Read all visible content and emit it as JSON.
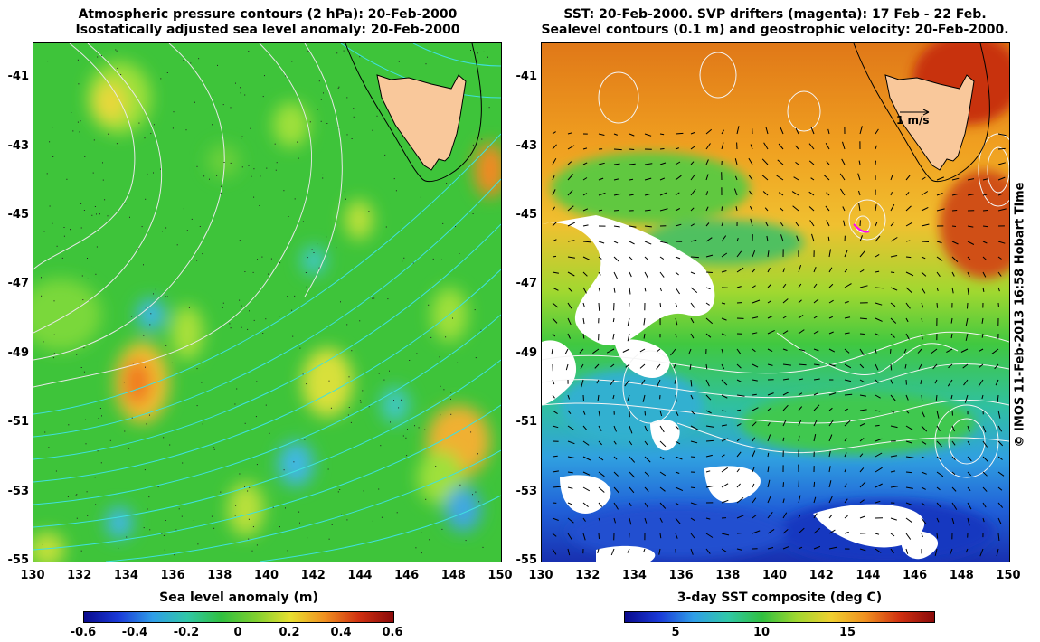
{
  "left": {
    "title_line1": "Atmospheric pressure contours (2 hPa): 20-Feb-2000",
    "title_line2": "Isostatically adjusted sea level anomaly: 20-Feb-2000",
    "colorbar_label": "Sea level anomaly (m)",
    "colorbar_ticks": [
      "-0.6",
      "-0.4",
      "-0.2",
      "0",
      "0.2",
      "0.4",
      "0.6"
    ],
    "colorbar_range": [
      -0.6,
      0.6
    ]
  },
  "right": {
    "title_line1": "SST: 20-Feb-2000. SVP drifters (magenta): 17 Feb - 22 Feb.",
    "title_line2": "Sealevel contours (0.1 m) and geostrophic velocity: 20-Feb-2000.",
    "velocity_scale_label": "1 m/s",
    "colorbar_label": "3-day SST composite (deg C)",
    "colorbar_ticks": [
      "5",
      "10",
      "15"
    ],
    "colorbar_tick_values": [
      5,
      10,
      15
    ],
    "colorbar_range": [
      2,
      20
    ]
  },
  "axes": {
    "lon_ticks": [
      "130",
      "132",
      "134",
      "136",
      "138",
      "140",
      "142",
      "144",
      "146",
      "148",
      "150"
    ],
    "lat_ticks": [
      "-41",
      "-43",
      "-45",
      "-47",
      "-49",
      "-51",
      "-53",
      "-55"
    ],
    "lon_range": [
      130,
      150
    ],
    "lat_range": [
      -55,
      -40
    ]
  },
  "credit": "© IMOS 11-Feb-2013 16:58 Hobart Time",
  "colors": {
    "land": "#f9c89b",
    "sla_background": "#3ec43a",
    "pressure_contour": "#e8e8e8",
    "sla_contour": "#40e0e0",
    "drifters": "#ff00ff"
  }
}
